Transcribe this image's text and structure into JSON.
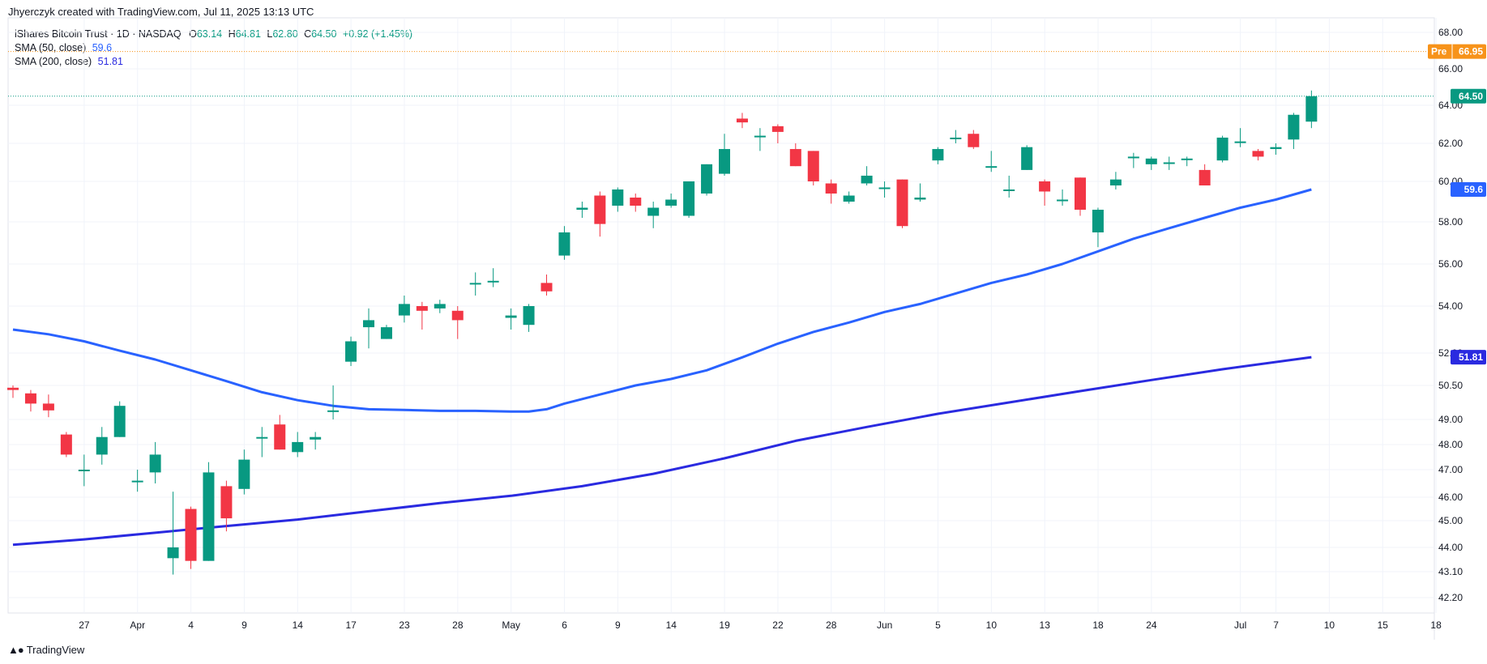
{
  "header": {
    "credit": "Jhyerczyk created with TradingView.com, Jul 11, 2025 13:13 UTC"
  },
  "legend": {
    "symbol": "iShares Bitcoin Trust · 1D · NASDAQ",
    "o_label": "O",
    "o_value": "63.14",
    "h_label": "H",
    "h_value": "64.81",
    "l_label": "L",
    "l_value": "62.80",
    "c_label": "C",
    "c_value": "64.50",
    "change": "+0.92 (+1.45%)",
    "sma50_label": "SMA (50, close)",
    "sma50_value": "59.6",
    "sma200_label": "SMA (200, close)",
    "sma200_value": "51.81"
  },
  "footer": {
    "brand": "TradingView"
  },
  "colors": {
    "up": "#089981",
    "down": "#f23645",
    "sma50": "#2962ff",
    "sma200": "#2a2ae0",
    "pre": "#f7931a",
    "grid": "#f0f3fa"
  },
  "chart_data": {
    "type": "candlestick",
    "y_ticks": [
      {
        "label": "68.00",
        "v": 68.0
      },
      {
        "label": "66.00",
        "v": 66.0
      },
      {
        "label": "64.00",
        "v": 64.0
      },
      {
        "label": "62.00",
        "v": 62.0
      },
      {
        "label": "60.00",
        "v": 60.0
      },
      {
        "label": "58.00",
        "v": 58.0
      },
      {
        "label": "56.00",
        "v": 56.0
      },
      {
        "label": "54.00",
        "v": 54.0
      },
      {
        "label": "52.00",
        "v": 52.0
      },
      {
        "label": "50.50",
        "v": 50.5
      },
      {
        "label": "49.00",
        "v": 49.0
      },
      {
        "label": "48.00",
        "v": 48.0
      },
      {
        "label": "47.00",
        "v": 47.0
      },
      {
        "label": "46.00",
        "v": 46.0
      },
      {
        "label": "45.00",
        "v": 45.0
      },
      {
        "label": "44.00",
        "v": 44.0
      },
      {
        "label": "43.10",
        "v": 43.1
      },
      {
        "label": "42.20",
        "v": 42.2
      }
    ],
    "x_ticks": [
      {
        "label": "27",
        "i": 2
      },
      {
        "label": "Apr",
        "i": 5
      },
      {
        "label": "4",
        "i": 8
      },
      {
        "label": "9",
        "i": 11
      },
      {
        "label": "14",
        "i": 14
      },
      {
        "label": "17",
        "i": 17
      },
      {
        "label": "23",
        "i": 20
      },
      {
        "label": "28",
        "i": 23
      },
      {
        "label": "May",
        "i": 26
      },
      {
        "label": "6",
        "i": 29
      },
      {
        "label": "9",
        "i": 32
      },
      {
        "label": "14",
        "i": 35
      },
      {
        "label": "19",
        "i": 38
      },
      {
        "label": "22",
        "i": 41
      },
      {
        "label": "28",
        "i": 44
      },
      {
        "label": "Jun",
        "i": 47
      },
      {
        "label": "5",
        "i": 50
      },
      {
        "label": "10",
        "i": 53
      },
      {
        "label": "13",
        "i": 56
      },
      {
        "label": "18",
        "i": 59
      },
      {
        "label": "24",
        "i": 62
      },
      {
        "label": "Jul",
        "i": 67
      },
      {
        "label": "7",
        "i": 69
      },
      {
        "label": "10",
        "i": 72
      },
      {
        "label": "15",
        "i": 75
      },
      {
        "label": "18",
        "i": 78
      }
    ],
    "candles": [
      [
        50.4,
        50.3,
        50.5,
        49.95
      ],
      [
        50.15,
        49.7,
        50.3,
        49.35
      ],
      [
        49.7,
        49.4,
        50.1,
        49.1
      ],
      [
        48.4,
        47.6,
        48.5,
        47.5
      ],
      [
        47.0,
        47.0,
        47.6,
        46.4
      ],
      [
        47.6,
        48.3,
        48.7,
        47.2
      ],
      [
        48.3,
        49.6,
        49.8,
        48.3
      ],
      [
        46.6,
        46.6,
        47.0,
        46.2
      ],
      [
        46.9,
        47.6,
        48.1,
        46.5
      ],
      [
        43.6,
        44.0,
        46.2,
        43.0
      ],
      [
        45.5,
        43.5,
        45.6,
        43.2
      ],
      [
        43.5,
        46.9,
        47.3,
        43.5
      ],
      [
        46.4,
        45.1,
        46.6,
        44.6
      ],
      [
        46.3,
        47.4,
        47.8,
        46.1
      ],
      [
        48.3,
        48.3,
        48.7,
        47.5
      ],
      [
        48.8,
        47.8,
        49.2,
        47.8
      ],
      [
        47.7,
        48.1,
        48.5,
        47.5
      ],
      [
        48.2,
        48.3,
        48.5,
        47.8
      ],
      [
        49.4,
        49.4,
        50.5,
        49.0
      ],
      [
        51.6,
        52.5,
        52.7,
        51.4
      ],
      [
        53.1,
        53.4,
        53.9,
        52.2
      ],
      [
        52.6,
        53.1,
        53.2,
        52.6
      ],
      [
        53.6,
        54.1,
        54.5,
        53.3
      ],
      [
        54.0,
        53.8,
        54.2,
        53.0
      ],
      [
        53.9,
        54.1,
        54.3,
        53.7
      ],
      [
        53.8,
        53.4,
        54.0,
        52.6
      ],
      [
        55.1,
        55.1,
        55.6,
        54.5
      ],
      [
        55.2,
        55.2,
        55.8,
        54.9
      ],
      [
        53.5,
        53.6,
        53.9,
        53.0
      ],
      [
        53.2,
        54.0,
        54.1,
        52.9
      ],
      [
        55.1,
        54.7,
        55.5,
        54.5
      ],
      [
        56.4,
        57.5,
        57.8,
        56.2
      ],
      [
        58.6,
        58.7,
        59.0,
        58.2
      ],
      [
        59.3,
        57.9,
        59.5,
        57.3
      ],
      [
        58.8,
        59.6,
        59.7,
        58.5
      ],
      [
        59.2,
        58.8,
        59.4,
        58.5
      ],
      [
        58.3,
        58.7,
        59.0,
        57.7
      ],
      [
        58.8,
        59.1,
        59.4,
        58.7
      ],
      [
        58.3,
        60.0,
        60.0,
        58.2
      ],
      [
        59.4,
        60.9,
        60.9,
        59.3
      ],
      [
        60.4,
        61.7,
        62.5,
        60.3
      ],
      [
        63.3,
        63.1,
        63.6,
        62.8
      ],
      [
        62.4,
        62.4,
        62.8,
        61.6
      ],
      [
        62.9,
        62.6,
        63.0,
        62.0
      ],
      [
        61.7,
        60.8,
        62.0,
        60.8
      ],
      [
        61.6,
        60.0,
        61.6,
        59.8
      ],
      [
        59.9,
        59.4,
        60.1,
        58.9
      ],
      [
        59.0,
        59.3,
        59.5,
        58.9
      ],
      [
        59.9,
        60.3,
        60.8,
        59.8
      ],
      [
        59.7,
        59.7,
        60.0,
        59.2
      ],
      [
        60.1,
        57.8,
        60.1,
        57.7
      ],
      [
        59.1,
        59.2,
        59.9,
        59.0
      ],
      [
        61.1,
        61.7,
        61.8,
        60.9
      ],
      [
        62.3,
        62.3,
        62.7,
        62.0
      ],
      [
        62.5,
        61.8,
        62.7,
        61.7
      ],
      [
        60.8,
        60.8,
        61.6,
        60.5
      ],
      [
        59.6,
        59.6,
        60.3,
        59.2
      ],
      [
        60.6,
        61.8,
        61.9,
        60.6
      ],
      [
        60.0,
        59.5,
        60.1,
        58.8
      ],
      [
        59.1,
        59.1,
        59.6,
        58.8
      ],
      [
        60.2,
        58.6,
        60.2,
        58.3
      ],
      [
        57.5,
        58.6,
        58.7,
        56.8
      ],
      [
        59.8,
        60.1,
        60.5,
        59.6
      ],
      [
        61.3,
        61.3,
        61.5,
        60.7
      ],
      [
        60.9,
        61.2,
        61.3,
        60.6
      ],
      [
        61.0,
        61.0,
        61.3,
        60.6
      ],
      [
        61.2,
        61.2,
        61.3,
        60.8
      ],
      [
        60.6,
        59.8,
        60.9,
        59.8
      ],
      [
        61.1,
        62.3,
        62.4,
        61.0
      ],
      [
        62.1,
        62.1,
        62.8,
        61.8
      ],
      [
        61.6,
        61.3,
        61.7,
        61.1
      ],
      [
        61.7,
        61.8,
        62.0,
        61.4
      ],
      [
        62.2,
        63.5,
        63.6,
        61.7
      ],
      [
        63.14,
        64.5,
        64.81,
        62.8
      ]
    ],
    "sma50": [
      [
        0,
        53.0
      ],
      [
        2,
        52.8
      ],
      [
        4,
        52.5
      ],
      [
        6,
        52.1
      ],
      [
        8,
        51.7
      ],
      [
        10,
        51.2
      ],
      [
        12,
        50.7
      ],
      [
        14,
        50.2
      ],
      [
        16,
        49.85
      ],
      [
        18,
        49.6
      ],
      [
        20,
        49.45
      ],
      [
        22,
        49.42
      ],
      [
        24,
        49.38
      ],
      [
        26,
        49.38
      ],
      [
        28,
        49.35
      ],
      [
        29,
        49.35
      ],
      [
        30,
        49.45
      ],
      [
        31,
        49.7
      ],
      [
        33,
        50.1
      ],
      [
        35,
        50.5
      ],
      [
        37,
        50.8
      ],
      [
        39,
        51.2
      ],
      [
        41,
        51.8
      ],
      [
        43,
        52.4
      ],
      [
        45,
        52.9
      ],
      [
        47,
        53.3
      ],
      [
        49,
        53.75
      ],
      [
        51,
        54.1
      ],
      [
        53,
        54.6
      ],
      [
        55,
        55.1
      ],
      [
        57,
        55.5
      ],
      [
        59,
        56.0
      ],
      [
        61,
        56.6
      ],
      [
        63,
        57.2
      ],
      [
        65,
        57.7
      ],
      [
        67,
        58.2
      ],
      [
        69,
        58.7
      ],
      [
        71,
        59.1
      ],
      [
        73,
        59.6
      ]
    ],
    "sma200": [
      [
        0,
        44.1
      ],
      [
        4,
        44.3
      ],
      [
        8,
        44.55
      ],
      [
        12,
        44.8
      ],
      [
        16,
        45.05
      ],
      [
        20,
        45.4
      ],
      [
        24,
        45.75
      ],
      [
        28,
        46.05
      ],
      [
        32,
        46.4
      ],
      [
        36,
        46.85
      ],
      [
        40,
        47.45
      ],
      [
        44,
        48.15
      ],
      [
        48,
        48.7
      ],
      [
        52,
        49.25
      ],
      [
        56,
        49.75
      ],
      [
        60,
        50.25
      ],
      [
        64,
        50.75
      ],
      [
        68,
        51.25
      ],
      [
        73,
        51.81
      ]
    ],
    "last_price": {
      "label": "64.50",
      "v": 64.5
    },
    "pre_market": {
      "tag": "Pre",
      "label": "66.95",
      "v": 66.95
    },
    "sma50_last": {
      "label": "59.6",
      "v": 59.6
    },
    "sma200_last": {
      "label": "51.81",
      "v": 51.81
    }
  }
}
